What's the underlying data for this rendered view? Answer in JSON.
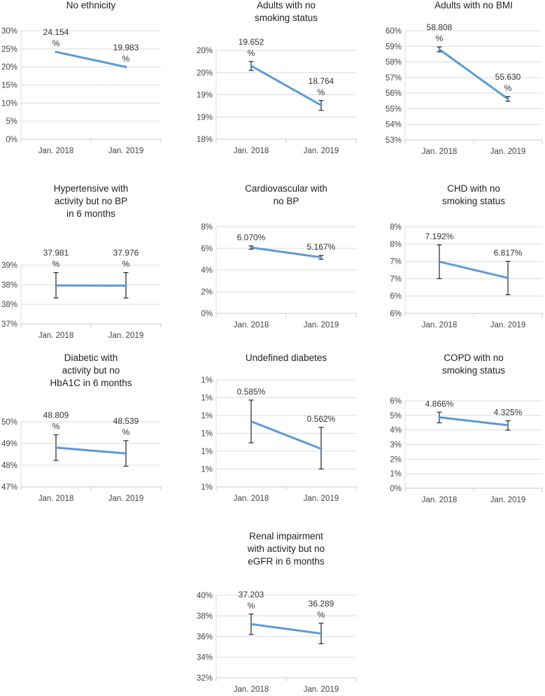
{
  "chart_data": [
    {
      "type": "line",
      "title": [
        "No ethnicity"
      ],
      "categories": [
        "Jan. 2018",
        "Jan. 2019"
      ],
      "values": [
        24.154,
        19.983
      ],
      "errors": null,
      "data_labels": [
        [
          "24.154",
          "%"
        ],
        [
          "19.983",
          "%"
        ]
      ],
      "yticks": [
        "0%",
        "5%",
        "10%",
        "15%",
        "20%",
        "25%",
        "30%"
      ],
      "ylim": [
        0,
        30
      ],
      "series_color": "#5b9bd5"
    },
    {
      "type": "line",
      "title": [
        "Adults with no",
        "smoking status"
      ],
      "categories": [
        "Jan. 2018",
        "Jan. 2019"
      ],
      "values": [
        19.652,
        18.764
      ],
      "errors": [
        [
          19.55,
          19.75
        ],
        [
          18.65,
          18.87
        ]
      ],
      "data_labels": [
        [
          "19.652",
          "%"
        ],
        [
          "18.764",
          "%"
        ]
      ],
      "yticks": [
        "18%",
        "19%",
        "19%",
        "20%",
        "20%"
      ],
      "ylim": [
        18,
        20
      ],
      "series_color": "#5b9bd5"
    },
    {
      "type": "line",
      "title": [
        "Adults with no BMI"
      ],
      "categories": [
        "Jan. 2018",
        "Jan. 2019"
      ],
      "values": [
        58.808,
        55.63
      ],
      "errors": [
        [
          58.65,
          58.96
        ],
        [
          55.48,
          55.78
        ]
      ],
      "data_labels": [
        [
          "58.808",
          "%"
        ],
        [
          "55.630",
          "%"
        ]
      ],
      "yticks": [
        "53%",
        "54%",
        "55%",
        "56%",
        "57%",
        "58%",
        "59%",
        "60%"
      ],
      "ylim": [
        53,
        60
      ],
      "series_color": "#5b9bd5"
    },
    {
      "type": "line",
      "title": [
        "Hypertensive with",
        "activity but no BP",
        "in 6 months"
      ],
      "categories": [
        "Jan. 2018",
        "Jan. 2019"
      ],
      "values": [
        37.981,
        37.976
      ],
      "errors": [
        [
          37.66,
          38.31
        ],
        [
          37.66,
          38.31
        ]
      ],
      "data_labels": [
        [
          "37.981",
          "%"
        ],
        [
          "37.976",
          "%"
        ]
      ],
      "yticks": [
        "37%",
        "38%",
        "38%",
        "39%"
      ],
      "ylim": [
        37,
        38.5
      ],
      "series_color": "#5b9bd5"
    },
    {
      "type": "line",
      "title": [
        "Cardiovascular with",
        "no BP"
      ],
      "categories": [
        "Jan. 2018",
        "Jan. 2019"
      ],
      "values": [
        6.07,
        5.167
      ],
      "errors": [
        [
          5.92,
          6.22
        ],
        [
          4.99,
          5.34
        ]
      ],
      "data_labels": [
        [
          "6.070%"
        ],
        [
          "5.167%"
        ]
      ],
      "yticks": [
        "0%",
        "2%",
        "4%",
        "6%",
        "8%"
      ],
      "ylim": [
        0,
        8
      ],
      "series_color": "#5b9bd5"
    },
    {
      "type": "line",
      "title": [
        "CHD with no",
        "smoking status"
      ],
      "categories": [
        "Jan. 2018",
        "Jan. 2019"
      ],
      "values": [
        7.192,
        6.817
      ],
      "errors": [
        [
          6.8,
          7.58
        ],
        [
          6.43,
          7.2
        ]
      ],
      "data_labels": [
        [
          "7.192%"
        ],
        [
          "6.817%"
        ]
      ],
      "yticks": [
        "6%",
        "6%",
        "7%",
        "7%",
        "8%",
        "8%"
      ],
      "ylim": [
        6,
        8
      ],
      "series_color": "#5b9bd5"
    },
    {
      "type": "line",
      "title": [
        "Diabetic with",
        "activity but no",
        "HbA1C in 6 months"
      ],
      "categories": [
        "Jan. 2018",
        "Jan. 2019"
      ],
      "values": [
        48.809,
        48.539
      ],
      "errors": [
        [
          48.22,
          49.4
        ],
        [
          47.95,
          49.13
        ]
      ],
      "data_labels": [
        [
          "48.809",
          "%"
        ],
        [
          "48.539",
          "%"
        ]
      ],
      "yticks": [
        "47%",
        "48%",
        "49%",
        "50%"
      ],
      "ylim": [
        47,
        50
      ],
      "series_color": "#5b9bd5"
    },
    {
      "type": "line",
      "title": [
        "Undefined diabetes"
      ],
      "categories": [
        "Jan. 2018",
        "Jan. 2019"
      ],
      "values": [
        0.585,
        0.562
      ],
      "errors": [
        [
          0.567,
          0.603
        ],
        [
          0.545,
          0.58
        ]
      ],
      "data_labels": [
        [
          "0.585%"
        ],
        [
          "0.562%"
        ]
      ],
      "yticks": [
        "1%",
        "1%",
        "1%",
        "1%",
        "1%",
        "1%",
        "1%"
      ],
      "ylim": [
        0.53,
        0.62
      ],
      "series_color": "#5b9bd5"
    },
    {
      "type": "line",
      "title": [
        "COPD with no",
        "smoking status"
      ],
      "categories": [
        "Jan. 2018",
        "Jan. 2019"
      ],
      "values": [
        4.866,
        4.325
      ],
      "errors": [
        [
          4.49,
          5.22
        ],
        [
          3.99,
          4.63
        ]
      ],
      "data_labels": [
        [
          "4.866%"
        ],
        [
          "4.325%"
        ]
      ],
      "yticks": [
        "0%",
        "1%",
        "2%",
        "3%",
        "4%",
        "5%",
        "6%"
      ],
      "ylim": [
        0,
        6
      ],
      "series_color": "#5b9bd5"
    },
    {
      "type": "line",
      "title": [
        "Renal impairment",
        "with activity but no",
        "eGFR in 6 months"
      ],
      "categories": [
        "Jan. 2018",
        "Jan. 2019"
      ],
      "values": [
        37.203,
        36.289
      ],
      "errors": [
        [
          36.2,
          38.18
        ],
        [
          35.3,
          37.28
        ]
      ],
      "data_labels": [
        [
          "37.203",
          "%"
        ],
        [
          "36.289",
          "%"
        ]
      ],
      "yticks": [
        "32%",
        "34%",
        "36%",
        "38%",
        "40%"
      ],
      "ylim": [
        32,
        40
      ],
      "series_color": "#5b9bd5"
    }
  ]
}
